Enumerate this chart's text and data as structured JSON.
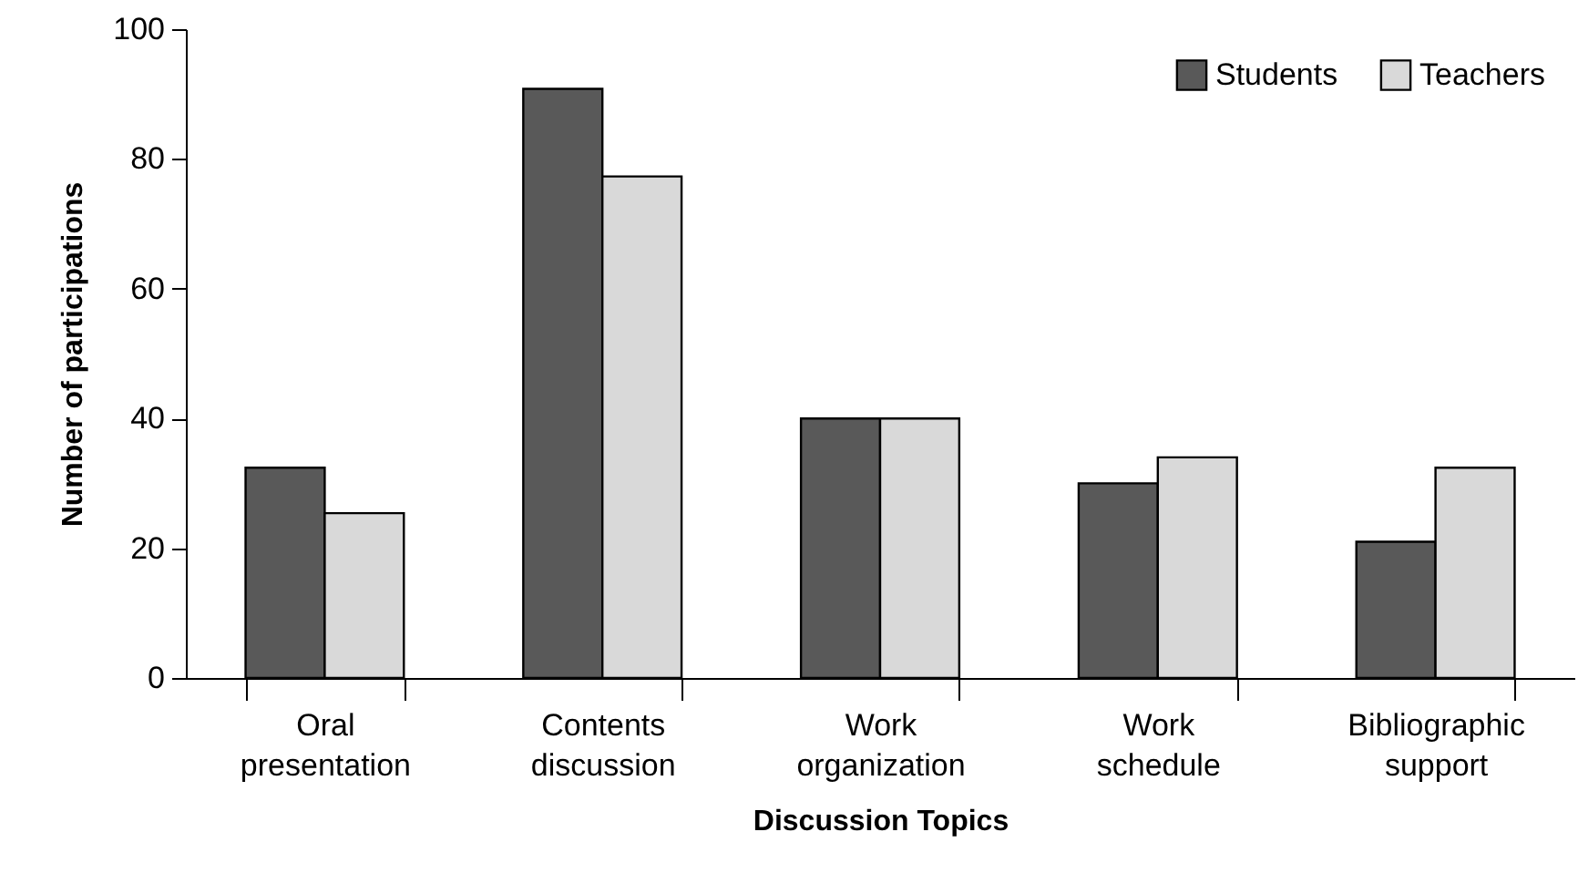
{
  "chart_data": {
    "type": "bar",
    "xlabel": "Discussion Topics",
    "ylabel": "Number of participations",
    "categories": [
      "Oral presentation",
      "Contents discussion",
      "Work organization",
      "Work schedule",
      "Bibliographic support"
    ],
    "series": [
      {
        "name": "Students",
        "color": "#595959",
        "values": [
          32.4,
          90.8,
          40,
          30,
          21
        ]
      },
      {
        "name": "Teachers",
        "color": "#d9d9d9",
        "values": [
          25.4,
          77.3,
          40,
          34,
          32.4
        ]
      }
    ],
    "ylim": [
      0,
      100
    ],
    "yticks": [
      0,
      20,
      40,
      60,
      80,
      100
    ],
    "grid": false,
    "legend": "top right"
  }
}
